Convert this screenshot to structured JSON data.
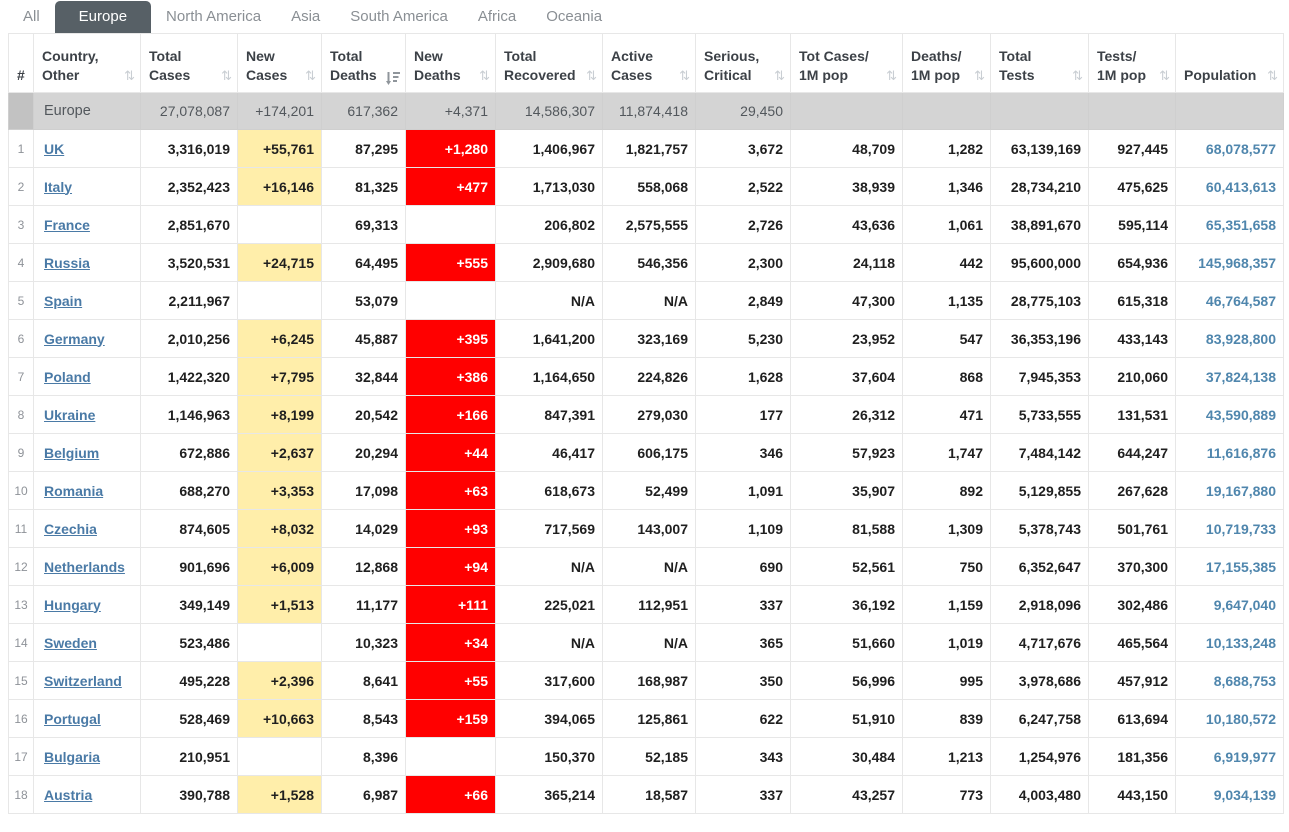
{
  "tabs": {
    "items": [
      {
        "label": "All",
        "active": false
      },
      {
        "label": "Europe",
        "active": true
      },
      {
        "label": "North America",
        "active": false
      },
      {
        "label": "Asia",
        "active": false
      },
      {
        "label": "South America",
        "active": false
      },
      {
        "label": "Africa",
        "active": false
      },
      {
        "label": "Oceania",
        "active": false
      }
    ]
  },
  "table": {
    "columns": [
      {
        "id": "rank",
        "lines": [
          "#"
        ],
        "sortable": false,
        "sort": "none"
      },
      {
        "id": "country",
        "lines": [
          "Country,",
          "Other"
        ],
        "sortable": true,
        "sort": "none"
      },
      {
        "id": "total_cases",
        "lines": [
          "Total",
          "Cases"
        ],
        "sortable": true,
        "sort": "none"
      },
      {
        "id": "new_cases",
        "lines": [
          "New",
          "Cases"
        ],
        "sortable": true,
        "sort": "none"
      },
      {
        "id": "total_deaths",
        "lines": [
          "Total",
          "Deaths"
        ],
        "sortable": true,
        "sort": "desc"
      },
      {
        "id": "new_deaths",
        "lines": [
          "New",
          "Deaths"
        ],
        "sortable": true,
        "sort": "none"
      },
      {
        "id": "total_recovered",
        "lines": [
          "Total",
          "Recovered"
        ],
        "sortable": true,
        "sort": "none"
      },
      {
        "id": "active_cases",
        "lines": [
          "Active",
          "Cases"
        ],
        "sortable": true,
        "sort": "none"
      },
      {
        "id": "serious_critical",
        "lines": [
          "Serious,",
          "Critical"
        ],
        "sortable": true,
        "sort": "none"
      },
      {
        "id": "tot_cases_1m",
        "lines": [
          "Tot Cases/",
          "1M pop"
        ],
        "sortable": true,
        "sort": "none"
      },
      {
        "id": "deaths_1m",
        "lines": [
          "Deaths/",
          "1M pop"
        ],
        "sortable": true,
        "sort": "none"
      },
      {
        "id": "total_tests",
        "lines": [
          "Total",
          "Tests"
        ],
        "sortable": true,
        "sort": "none"
      },
      {
        "id": "tests_1m",
        "lines": [
          "Tests/",
          "1M pop"
        ],
        "sortable": true,
        "sort": "none"
      },
      {
        "id": "population",
        "lines": [
          "Population"
        ],
        "sortable": true,
        "sort": "none"
      }
    ],
    "totals": {
      "country": "Europe",
      "total_cases": "27,078,087",
      "new_cases": "+174,201",
      "total_deaths": "617,362",
      "new_deaths": "+4,371",
      "total_recovered": "14,586,307",
      "active_cases": "11,874,418",
      "serious_critical": "29,450",
      "tot_cases_1m": "",
      "deaths_1m": "",
      "total_tests": "",
      "tests_1m": "",
      "population": ""
    },
    "rows": [
      {
        "rank": "1",
        "country": "UK",
        "total_cases": "3,316,019",
        "new_cases": "+55,761",
        "total_deaths": "87,295",
        "new_deaths": "+1,280",
        "total_recovered": "1,406,967",
        "active_cases": "1,821,757",
        "serious_critical": "3,672",
        "tot_cases_1m": "48,709",
        "deaths_1m": "1,282",
        "total_tests": "63,139,169",
        "tests_1m": "927,445",
        "population": "68,078,577"
      },
      {
        "rank": "2",
        "country": "Italy",
        "total_cases": "2,352,423",
        "new_cases": "+16,146",
        "total_deaths": "81,325",
        "new_deaths": "+477",
        "total_recovered": "1,713,030",
        "active_cases": "558,068",
        "serious_critical": "2,522",
        "tot_cases_1m": "38,939",
        "deaths_1m": "1,346",
        "total_tests": "28,734,210",
        "tests_1m": "475,625",
        "population": "60,413,613"
      },
      {
        "rank": "3",
        "country": "France",
        "total_cases": "2,851,670",
        "new_cases": "",
        "total_deaths": "69,313",
        "new_deaths": "",
        "total_recovered": "206,802",
        "active_cases": "2,575,555",
        "serious_critical": "2,726",
        "tot_cases_1m": "43,636",
        "deaths_1m": "1,061",
        "total_tests": "38,891,670",
        "tests_1m": "595,114",
        "population": "65,351,658"
      },
      {
        "rank": "4",
        "country": "Russia",
        "total_cases": "3,520,531",
        "new_cases": "+24,715",
        "total_deaths": "64,495",
        "new_deaths": "+555",
        "total_recovered": "2,909,680",
        "active_cases": "546,356",
        "serious_critical": "2,300",
        "tot_cases_1m": "24,118",
        "deaths_1m": "442",
        "total_tests": "95,600,000",
        "tests_1m": "654,936",
        "population": "145,968,357"
      },
      {
        "rank": "5",
        "country": "Spain",
        "total_cases": "2,211,967",
        "new_cases": "",
        "total_deaths": "53,079",
        "new_deaths": "",
        "total_recovered": "N/A",
        "active_cases": "N/A",
        "serious_critical": "2,849",
        "tot_cases_1m": "47,300",
        "deaths_1m": "1,135",
        "total_tests": "28,775,103",
        "tests_1m": "615,318",
        "population": "46,764,587"
      },
      {
        "rank": "6",
        "country": "Germany",
        "total_cases": "2,010,256",
        "new_cases": "+6,245",
        "total_deaths": "45,887",
        "new_deaths": "+395",
        "total_recovered": "1,641,200",
        "active_cases": "323,169",
        "serious_critical": "5,230",
        "tot_cases_1m": "23,952",
        "deaths_1m": "547",
        "total_tests": "36,353,196",
        "tests_1m": "433,143",
        "population": "83,928,800"
      },
      {
        "rank": "7",
        "country": "Poland",
        "total_cases": "1,422,320",
        "new_cases": "+7,795",
        "total_deaths": "32,844",
        "new_deaths": "+386",
        "total_recovered": "1,164,650",
        "active_cases": "224,826",
        "serious_critical": "1,628",
        "tot_cases_1m": "37,604",
        "deaths_1m": "868",
        "total_tests": "7,945,353",
        "tests_1m": "210,060",
        "population": "37,824,138"
      },
      {
        "rank": "8",
        "country": "Ukraine",
        "total_cases": "1,146,963",
        "new_cases": "+8,199",
        "total_deaths": "20,542",
        "new_deaths": "+166",
        "total_recovered": "847,391",
        "active_cases": "279,030",
        "serious_critical": "177",
        "tot_cases_1m": "26,312",
        "deaths_1m": "471",
        "total_tests": "5,733,555",
        "tests_1m": "131,531",
        "population": "43,590,889"
      },
      {
        "rank": "9",
        "country": "Belgium",
        "total_cases": "672,886",
        "new_cases": "+2,637",
        "total_deaths": "20,294",
        "new_deaths": "+44",
        "total_recovered": "46,417",
        "active_cases": "606,175",
        "serious_critical": "346",
        "tot_cases_1m": "57,923",
        "deaths_1m": "1,747",
        "total_tests": "7,484,142",
        "tests_1m": "644,247",
        "population": "11,616,876"
      },
      {
        "rank": "10",
        "country": "Romania",
        "total_cases": "688,270",
        "new_cases": "+3,353",
        "total_deaths": "17,098",
        "new_deaths": "+63",
        "total_recovered": "618,673",
        "active_cases": "52,499",
        "serious_critical": "1,091",
        "tot_cases_1m": "35,907",
        "deaths_1m": "892",
        "total_tests": "5,129,855",
        "tests_1m": "267,628",
        "population": "19,167,880"
      },
      {
        "rank": "11",
        "country": "Czechia",
        "total_cases": "874,605",
        "new_cases": "+8,032",
        "total_deaths": "14,029",
        "new_deaths": "+93",
        "total_recovered": "717,569",
        "active_cases": "143,007",
        "serious_critical": "1,109",
        "tot_cases_1m": "81,588",
        "deaths_1m": "1,309",
        "total_tests": "5,378,743",
        "tests_1m": "501,761",
        "population": "10,719,733"
      },
      {
        "rank": "12",
        "country": "Netherlands",
        "total_cases": "901,696",
        "new_cases": "+6,009",
        "total_deaths": "12,868",
        "new_deaths": "+94",
        "total_recovered": "N/A",
        "active_cases": "N/A",
        "serious_critical": "690",
        "tot_cases_1m": "52,561",
        "deaths_1m": "750",
        "total_tests": "6,352,647",
        "tests_1m": "370,300",
        "population": "17,155,385"
      },
      {
        "rank": "13",
        "country": "Hungary",
        "total_cases": "349,149",
        "new_cases": "+1,513",
        "total_deaths": "11,177",
        "new_deaths": "+111",
        "total_recovered": "225,021",
        "active_cases": "112,951",
        "serious_critical": "337",
        "tot_cases_1m": "36,192",
        "deaths_1m": "1,159",
        "total_tests": "2,918,096",
        "tests_1m": "302,486",
        "population": "9,647,040"
      },
      {
        "rank": "14",
        "country": "Sweden",
        "total_cases": "523,486",
        "new_cases": "",
        "total_deaths": "10,323",
        "new_deaths": "+34",
        "total_recovered": "N/A",
        "active_cases": "N/A",
        "serious_critical": "365",
        "tot_cases_1m": "51,660",
        "deaths_1m": "1,019",
        "total_tests": "4,717,676",
        "tests_1m": "465,564",
        "population": "10,133,248"
      },
      {
        "rank": "15",
        "country": "Switzerland",
        "total_cases": "495,228",
        "new_cases": "+2,396",
        "total_deaths": "8,641",
        "new_deaths": "+55",
        "total_recovered": "317,600",
        "active_cases": "168,987",
        "serious_critical": "350",
        "tot_cases_1m": "56,996",
        "deaths_1m": "995",
        "total_tests": "3,978,686",
        "tests_1m": "457,912",
        "population": "8,688,753"
      },
      {
        "rank": "16",
        "country": "Portugal",
        "total_cases": "528,469",
        "new_cases": "+10,663",
        "total_deaths": "8,543",
        "new_deaths": "+159",
        "total_recovered": "394,065",
        "active_cases": "125,861",
        "serious_critical": "622",
        "tot_cases_1m": "51,910",
        "deaths_1m": "839",
        "total_tests": "6,247,758",
        "tests_1m": "613,694",
        "population": "10,180,572"
      },
      {
        "rank": "17",
        "country": "Bulgaria",
        "total_cases": "210,951",
        "new_cases": "",
        "total_deaths": "8,396",
        "new_deaths": "",
        "total_recovered": "150,370",
        "active_cases": "52,185",
        "serious_critical": "343",
        "tot_cases_1m": "30,484",
        "deaths_1m": "1,213",
        "total_tests": "1,254,976",
        "tests_1m": "181,356",
        "population": "6,919,977"
      },
      {
        "rank": "18",
        "country": "Austria",
        "total_cases": "390,788",
        "new_cases": "+1,528",
        "total_deaths": "6,987",
        "new_deaths": "+66",
        "total_recovered": "365,214",
        "active_cases": "18,587",
        "serious_critical": "337",
        "tot_cases_1m": "43,257",
        "deaths_1m": "773",
        "total_tests": "4,003,480",
        "tests_1m": "443,150",
        "population": "9,034,139"
      }
    ]
  },
  "colors": {
    "tab_active_bg": "#576066",
    "new_cases_highlight": "#FFEEAA",
    "new_deaths_highlight": "#FF0000",
    "country_link": "#4a7aa6",
    "population_text": "#4f86ad",
    "totals_row_bg": "#d4d4d4"
  },
  "icons": {
    "sort_inactive": "⇅",
    "sort_active_desc": "sort-amount-desc"
  }
}
